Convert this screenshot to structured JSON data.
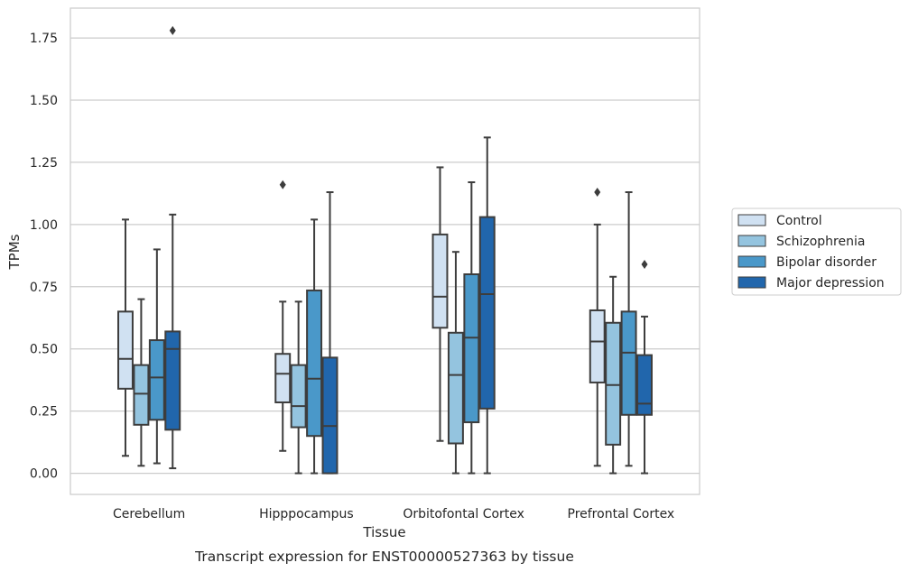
{
  "caption": "Transcript expression for ENST00000527363 by tissue",
  "chart_data": {
    "type": "boxplot",
    "xlabel": "Tissue",
    "ylabel": "TPMs",
    "ylim": [
      -0.085,
      1.87
    ],
    "yticks": [
      "0.00",
      "0.25",
      "0.50",
      "0.75",
      "1.00",
      "1.25",
      "1.50",
      "1.75"
    ],
    "grid": "horizontal",
    "legend_position": "right, outside plot",
    "categories": [
      "Cerebellum",
      "Hipppocampus",
      "Orbitofontal Cortex",
      "Prefrontal Cortex"
    ],
    "series": [
      {
        "name": "Control",
        "color": "#d0e1f2",
        "boxes": [
          {
            "whisker_low": 0.07,
            "q1": 0.34,
            "median": 0.46,
            "q3": 0.65,
            "whisker_high": 1.02,
            "outliers": []
          },
          {
            "whisker_low": 0.09,
            "q1": 0.285,
            "median": 0.4,
            "q3": 0.48,
            "whisker_high": 0.69,
            "outliers": [
              1.16
            ]
          },
          {
            "whisker_low": 0.13,
            "q1": 0.585,
            "median": 0.71,
            "q3": 0.96,
            "whisker_high": 1.23,
            "outliers": []
          },
          {
            "whisker_low": 0.03,
            "q1": 0.365,
            "median": 0.53,
            "q3": 0.655,
            "whisker_high": 1.0,
            "outliers": [
              1.13
            ]
          }
        ]
      },
      {
        "name": "Schizophrenia",
        "color": "#94c4df",
        "boxes": [
          {
            "whisker_low": 0.03,
            "q1": 0.195,
            "median": 0.32,
            "q3": 0.435,
            "whisker_high": 0.7,
            "outliers": []
          },
          {
            "whisker_low": 0.0,
            "q1": 0.185,
            "median": 0.27,
            "q3": 0.435,
            "whisker_high": 0.69,
            "outliers": []
          },
          {
            "whisker_low": 0.0,
            "q1": 0.12,
            "median": 0.395,
            "q3": 0.565,
            "whisker_high": 0.89,
            "outliers": []
          },
          {
            "whisker_low": 0.0,
            "q1": 0.115,
            "median": 0.355,
            "q3": 0.605,
            "whisker_high": 0.79,
            "outliers": []
          }
        ]
      },
      {
        "name": "Bipolar disorder",
        "color": "#4a98c9",
        "boxes": [
          {
            "whisker_low": 0.04,
            "q1": 0.215,
            "median": 0.385,
            "q3": 0.535,
            "whisker_high": 0.9,
            "outliers": []
          },
          {
            "whisker_low": 0.0,
            "q1": 0.15,
            "median": 0.38,
            "q3": 0.735,
            "whisker_high": 1.02,
            "outliers": []
          },
          {
            "whisker_low": 0.0,
            "q1": 0.205,
            "median": 0.545,
            "q3": 0.8,
            "whisker_high": 1.17,
            "outliers": []
          },
          {
            "whisker_low": 0.03,
            "q1": 0.235,
            "median": 0.485,
            "q3": 0.65,
            "whisker_high": 1.13,
            "outliers": []
          }
        ]
      },
      {
        "name": "Major depression",
        "color": "#2166ac",
        "boxes": [
          {
            "whisker_low": 0.02,
            "q1": 0.175,
            "median": 0.5,
            "q3": 0.57,
            "whisker_high": 1.04,
            "outliers": [
              1.78
            ]
          },
          {
            "whisker_low": 0.0,
            "q1": 0.0,
            "median": 0.19,
            "q3": 0.465,
            "whisker_high": 1.13,
            "outliers": []
          },
          {
            "whisker_low": 0.0,
            "q1": 0.26,
            "median": 0.72,
            "q3": 1.03,
            "whisker_high": 1.35,
            "outliers": []
          },
          {
            "whisker_low": 0.0,
            "q1": 0.235,
            "median": 0.28,
            "q3": 0.475,
            "whisker_high": 0.63,
            "outliers": [
              0.84
            ]
          }
        ]
      }
    ]
  }
}
